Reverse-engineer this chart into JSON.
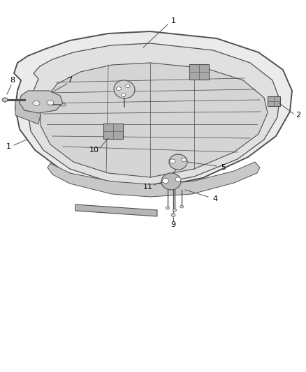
{
  "bg_color": "#ffffff",
  "line_color": "#505050",
  "label_color": "#000000",
  "label_fontsize": 8,
  "fig_w": 4.38,
  "fig_h": 5.33,
  "dpi": 100
}
